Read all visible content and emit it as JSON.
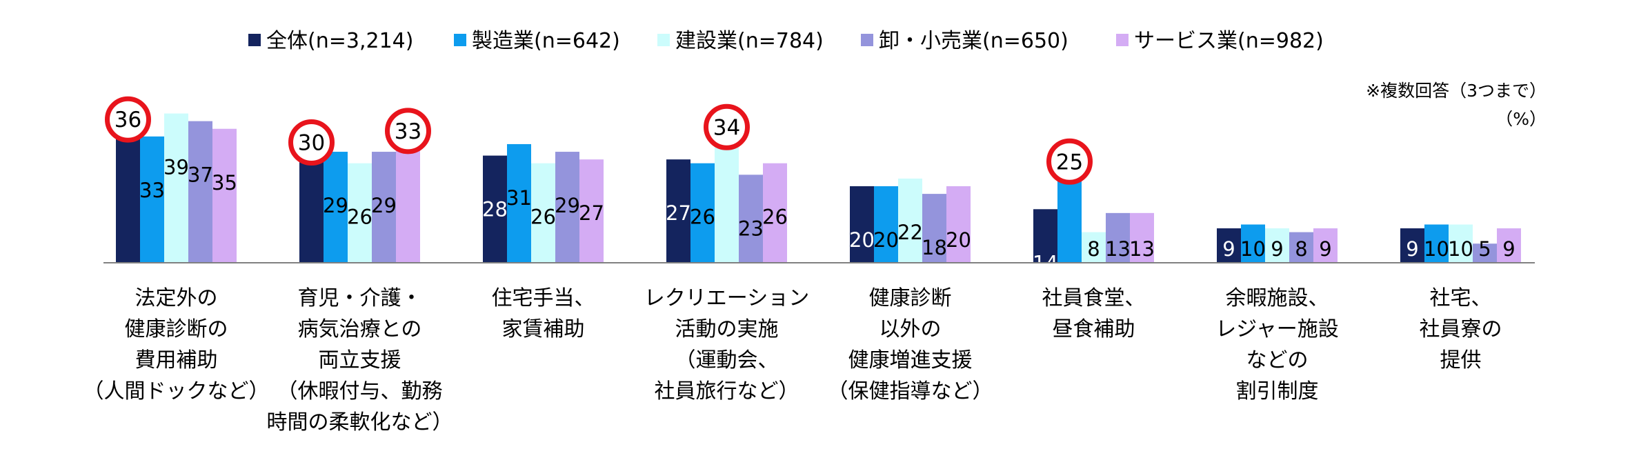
{
  "chart_data": {
    "type": "bar",
    "title": "",
    "note": "※複数回答（3つまで）",
    "unit": "（%）",
    "ylim": [
      0,
      40
    ],
    "legend_position": "top",
    "categories": [
      [
        "法定外の",
        "健康診断の",
        "費用補助",
        "（人間ドックなど）"
      ],
      [
        "育児・介護・",
        "病気治療との",
        "両立支援",
        "（休暇付与、勤務",
        "時間の柔軟化など）"
      ],
      [
        "住宅手当、",
        "家賃補助"
      ],
      [
        "レクリエーション",
        "活動の実施",
        "（運動会、",
        "社員旅行など）"
      ],
      [
        "健康診断",
        "以外の",
        "健康増進支援",
        "（保健指導など）"
      ],
      [
        "社員食堂、",
        "昼食補助"
      ],
      [
        "余暇施設、",
        "レジャー施設",
        "などの",
        "割引制度"
      ],
      [
        "社宅、",
        "社員寮の",
        "提供"
      ]
    ],
    "series": [
      {
        "name": "全体(n=3,214)",
        "color": "#14245e",
        "label_color": "#ffffff",
        "values": [
          36,
          30,
          28,
          27,
          20,
          14,
          9,
          9
        ]
      },
      {
        "name": "製造業(n=642)",
        "color": "#0d9cee",
        "label_color": "#000000",
        "values": [
          33,
          29,
          31,
          26,
          20,
          25,
          10,
          10
        ]
      },
      {
        "name": "建設業(n=784)",
        "color": "#ccfcfc",
        "label_color": "#000000",
        "values": [
          39,
          26,
          26,
          34,
          22,
          8,
          9,
          10
        ]
      },
      {
        "name": "卸・小売業(n=650)",
        "color": "#9494dc",
        "label_color": "#000000",
        "values": [
          37,
          29,
          29,
          23,
          18,
          13,
          8,
          5
        ]
      },
      {
        "name": "サービス業(n=982)",
        "color": "#d4acf4",
        "label_color": "#000000",
        "values": [
          35,
          33,
          27,
          26,
          20,
          13,
          9,
          9
        ]
      }
    ],
    "highlights": [
      {
        "category": 0,
        "series": 0,
        "value": 36
      },
      {
        "category": 1,
        "series": 0,
        "value": 30
      },
      {
        "category": 1,
        "series": 4,
        "value": 33
      },
      {
        "category": 3,
        "series": 2,
        "value": 34
      },
      {
        "category": 5,
        "series": 1,
        "value": 25
      }
    ],
    "highlight_color": "#e8141c"
  }
}
